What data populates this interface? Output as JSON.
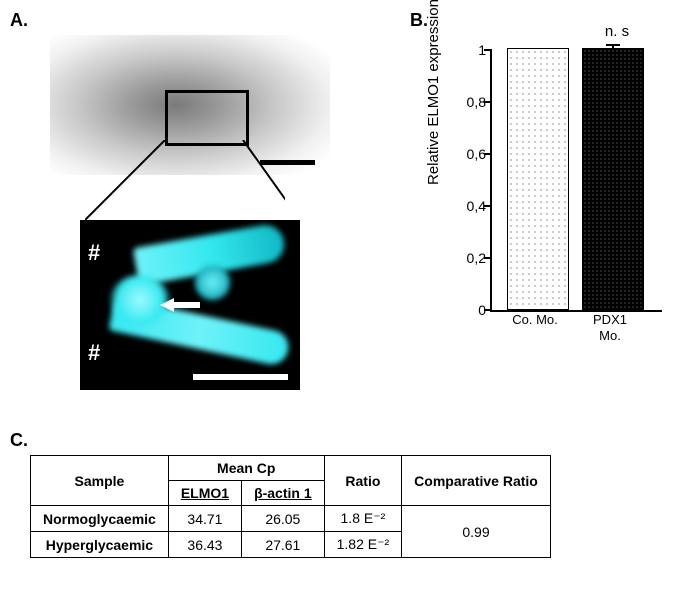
{
  "panels": {
    "A": {
      "label": "A."
    },
    "B": {
      "label": "B.",
      "chart": {
        "type": "bar",
        "y_axis_label": "Relative ELMO1 expression",
        "ylim": [
          0,
          1.0
        ],
        "yticks": [
          0,
          0.2,
          0.4,
          0.6,
          0.8,
          1.0
        ],
        "ytick_labels": [
          "0",
          "0,2",
          "0,4",
          "0,6",
          "0,8",
          "1"
        ],
        "categories": [
          {
            "line1": "Co. Mo.",
            "line2": ""
          },
          {
            "line1": "PDX1",
            "line2": "Mo."
          }
        ],
        "values": [
          1.0,
          1.02
        ],
        "errors": [
          0,
          0.02
        ],
        "bar_fill": [
          "#ffffff",
          "#000000"
        ],
        "bar_pattern_dot_color": [
          "#333333",
          "#888888"
        ],
        "annotation": "n. s",
        "axis_color": "#000000",
        "label_fontsize": 15,
        "tick_fontsize": 14,
        "bar_width_rel": 0.35
      }
    },
    "C": {
      "label": "C.",
      "table": {
        "header_sample": "Sample",
        "header_meancp": "Mean Cp",
        "header_elmo1": "ELMO1",
        "header_bactin": "β-actin 1",
        "header_ratio": "Ratio",
        "header_comp_ratio": "Comparative Ratio",
        "rows": [
          {
            "sample": "Normoglycaemic",
            "elmo1": "34.71",
            "bactin": "26.05",
            "ratio": "1.8 E⁻²"
          },
          {
            "sample": "Hyperglycaemic",
            "elmo1": "36.43",
            "bactin": "27.61",
            "ratio": "1.82 E⁻²"
          }
        ],
        "comparative_ratio": "0.99",
        "border_color": "#000000",
        "font_size": 14
      }
    }
  },
  "micrograph": {
    "top": {
      "background_gradient": [
        "#7a7a7a",
        "#ffffff"
      ],
      "roi_border_color": "#000000",
      "scalebar_color": "#000000"
    },
    "bottom": {
      "background": "#000000",
      "fluor_color": "#35e8f0",
      "hash_symbol": "#",
      "arrow_color": "#ffffff",
      "scalebar_color": "#ffffff"
    }
  }
}
